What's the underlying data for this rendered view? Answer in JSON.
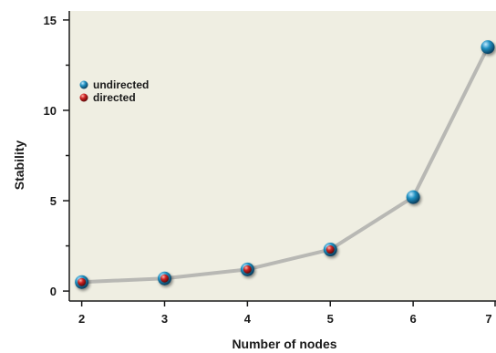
{
  "chart_data": {
    "type": "scatter",
    "xlabel": "Number of nodes",
    "ylabel": "Stability",
    "x_ticks": [
      2,
      3,
      4,
      5,
      6,
      7
    ],
    "y_ticks": [
      0,
      5,
      10,
      15
    ],
    "xlim": [
      1.85,
      7.0
    ],
    "ylim": [
      -0.55,
      15.5
    ],
    "grid": false,
    "legend_position": "left",
    "series": [
      {
        "name": "undirected",
        "color": "#1f8fc0",
        "x": [
          2,
          3,
          4,
          5,
          6,
          7
        ],
        "y": [
          0.5,
          0.7,
          1.2,
          2.3,
          5.2,
          13.5
        ]
      },
      {
        "name": "directed",
        "color": "#cc2222",
        "x": [
          2,
          3,
          4,
          5
        ],
        "y": [
          0.5,
          0.7,
          1.2,
          2.3
        ]
      }
    ],
    "connecting_line_color": "#b8b8b4",
    "plot_background": "#efeee2"
  }
}
